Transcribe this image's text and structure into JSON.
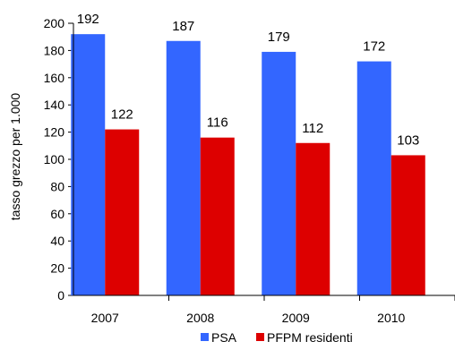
{
  "chart_data": {
    "type": "bar",
    "title": "",
    "xlabel": "",
    "ylabel": "tasso grezzo per  1.000",
    "ylim": [
      0,
      200
    ],
    "ytick_step": 20,
    "categories": [
      "2007",
      "2008",
      "2009",
      "2010"
    ],
    "series": [
      {
        "name": "PSA",
        "color": "#3366FF",
        "values": [
          192,
          187,
          179,
          172
        ]
      },
      {
        "name": "PFPM residenti",
        "color": "#DD0000",
        "values": [
          122,
          116,
          112,
          103
        ]
      }
    ],
    "grid": false,
    "legend_position": "bottom",
    "data_labels": true
  }
}
